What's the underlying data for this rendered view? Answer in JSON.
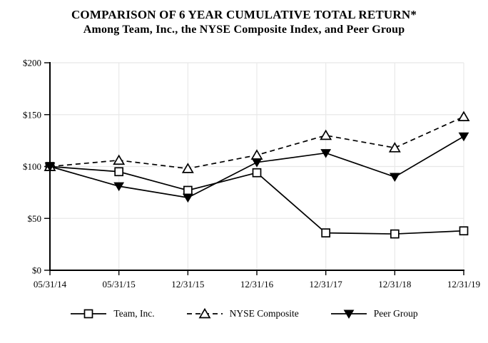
{
  "title": {
    "line1": "COMPARISON OF 6 YEAR CUMULATIVE TOTAL RETURN*",
    "line2": "Among Team, Inc., the NYSE Composite Index, and Peer Group"
  },
  "chart_data": {
    "type": "line",
    "categories": [
      "05/31/14",
      "05/31/15",
      "12/31/15",
      "12/31/16",
      "12/31/17",
      "12/31/18",
      "12/31/19"
    ],
    "series": [
      {
        "name": "Team, Inc.",
        "marker": "square-open",
        "line": "solid",
        "color": "#000000",
        "values": [
          100,
          95,
          77,
          94,
          36,
          35,
          38
        ]
      },
      {
        "name": "NYSE Composite",
        "marker": "triangle-up-open",
        "line": "dashed",
        "color": "#000000",
        "values": [
          100,
          106,
          98,
          111,
          130,
          118,
          148
        ]
      },
      {
        "name": "Peer Group",
        "marker": "triangle-down-filled",
        "line": "solid",
        "color": "#000000",
        "values": [
          100,
          81,
          70,
          104,
          113,
          90,
          129
        ]
      }
    ],
    "y_ticks": [
      {
        "label": "$0",
        "value": 0
      },
      {
        "label": "$50",
        "value": 50
      },
      {
        "label": "$100",
        "value": 100
      },
      {
        "label": "$150",
        "value": 150
      },
      {
        "label": "$200",
        "value": 200
      }
    ],
    "ylim": [
      0,
      200
    ],
    "xlabel": "",
    "ylabel": "",
    "grid": true,
    "gridline_color": "#e8e8e8",
    "axis_color": "#000000",
    "legend_position": "bottom"
  }
}
